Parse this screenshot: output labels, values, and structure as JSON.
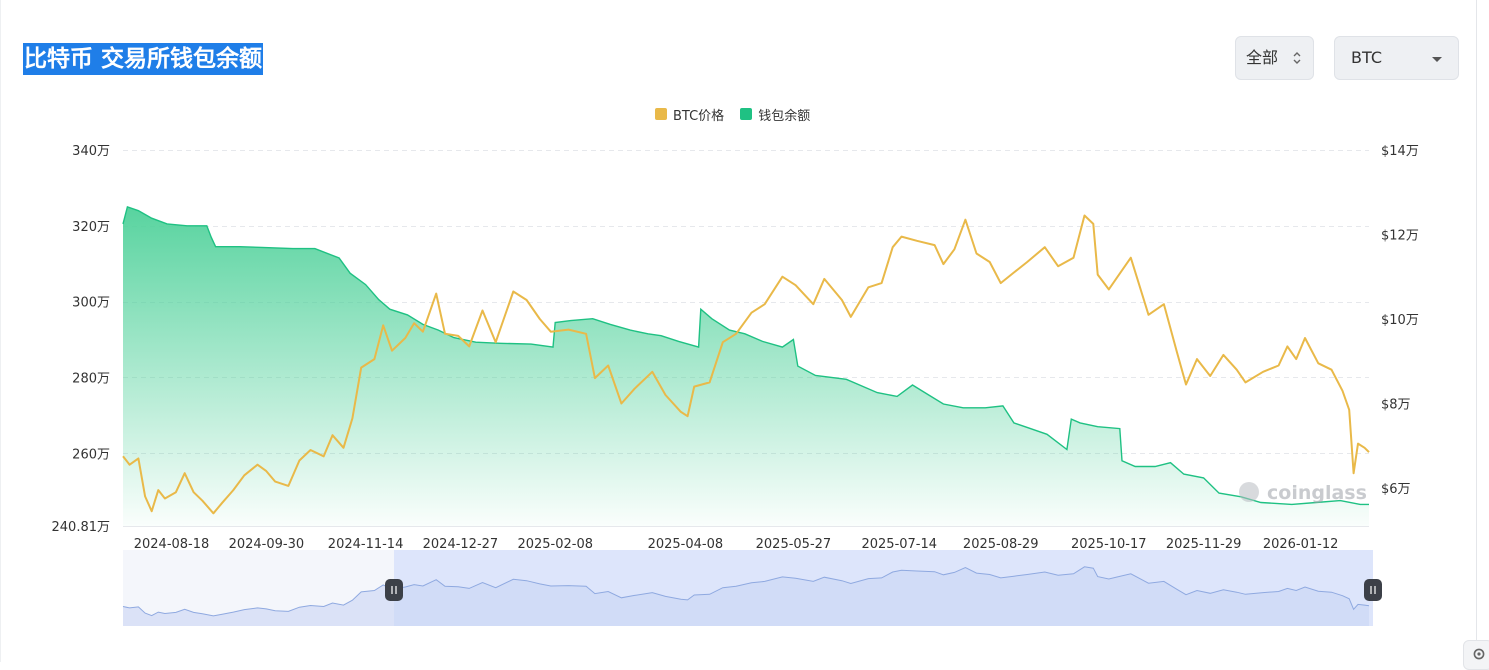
{
  "header": {
    "title": "比特币 交易所钱包余额",
    "range_select": {
      "value": "全部"
    },
    "coin_select": {
      "value": "BTC"
    }
  },
  "watermark": "coinglass",
  "colors": {
    "price": "#e9b949",
    "balance": "#1fc183",
    "balance_fill_top": "#4fd19a",
    "grid": "#e6e8ec",
    "navigator_line": "#8fa9e0",
    "navigator_fill": "#dde5fb",
    "title_bg": "#1f7ee8"
  },
  "chart_data": {
    "type": "line",
    "legend": [
      "BTC价格",
      "钱包余额"
    ],
    "left_axis": {
      "ticks": [
        "340万",
        "320万",
        "300万",
        "280万",
        "260万",
        "240.81万"
      ],
      "values": [
        3400000,
        3200000,
        3000000,
        2800000,
        2600000,
        2408100
      ],
      "range": [
        2408100,
        3400000
      ]
    },
    "right_axis": {
      "ticks": [
        "$14万",
        "$12万",
        "$10万",
        "$8万",
        "$6万"
      ],
      "values": [
        140000,
        120000,
        100000,
        80000,
        60000
      ],
      "range": [
        51000,
        140000
      ]
    },
    "x_ticks": [
      "2024-08-18",
      "2024-09-30",
      "2024-11-14",
      "2024-12-27",
      "2025-02-08",
      "2025-04-08",
      "2025-05-27",
      "2025-07-14",
      "2025-08-29",
      "2025-10-17",
      "2025-11-29",
      "2026-01-12"
    ],
    "x_range": [
      "2024-07-27",
      "2026-02-12"
    ],
    "series": [
      {
        "name": "钱包余额",
        "axis": "left",
        "points": [
          [
            "2024-07-27",
            3205000
          ],
          [
            "2024-07-29",
            3250000
          ],
          [
            "2024-08-03",
            3240000
          ],
          [
            "2024-08-09",
            3220000
          ],
          [
            "2024-08-16",
            3205000
          ],
          [
            "2024-08-25",
            3200000
          ],
          [
            "2024-09-03",
            3200000
          ],
          [
            "2024-09-05",
            3170000
          ],
          [
            "2024-09-07",
            3145000
          ],
          [
            "2024-09-18",
            3145000
          ],
          [
            "2024-09-28",
            3143000
          ],
          [
            "2024-10-12",
            3140000
          ],
          [
            "2024-10-22",
            3140000
          ],
          [
            "2024-11-02",
            3115000
          ],
          [
            "2024-11-07",
            3075000
          ],
          [
            "2024-11-14",
            3045000
          ],
          [
            "2024-11-20",
            3005000
          ],
          [
            "2024-11-25",
            2980000
          ],
          [
            "2024-12-03",
            2965000
          ],
          [
            "2024-12-10",
            2940000
          ],
          [
            "2024-12-17",
            2925000
          ],
          [
            "2024-12-24",
            2905000
          ],
          [
            "2025-01-03",
            2893000
          ],
          [
            "2025-01-14",
            2890000
          ],
          [
            "2025-01-28",
            2888000
          ],
          [
            "2025-02-07",
            2880000
          ],
          [
            "2025-02-08",
            2945000
          ],
          [
            "2025-02-15",
            2950000
          ],
          [
            "2025-02-25",
            2955000
          ],
          [
            "2025-03-05",
            2940000
          ],
          [
            "2025-03-14",
            2925000
          ],
          [
            "2025-03-22",
            2915000
          ],
          [
            "2025-03-28",
            2910000
          ],
          [
            "2025-04-05",
            2895000
          ],
          [
            "2025-04-14",
            2880000
          ],
          [
            "2025-04-15",
            2980000
          ],
          [
            "2025-04-20",
            2955000
          ],
          [
            "2025-04-28",
            2925000
          ],
          [
            "2025-05-05",
            2915000
          ],
          [
            "2025-05-13",
            2895000
          ],
          [
            "2025-05-22",
            2880000
          ],
          [
            "2025-05-27",
            2900000
          ],
          [
            "2025-05-29",
            2830000
          ],
          [
            "2025-06-06",
            2805000
          ],
          [
            "2025-06-20",
            2795000
          ],
          [
            "2025-07-04",
            2760000
          ],
          [
            "2025-07-13",
            2750000
          ],
          [
            "2025-07-20",
            2780000
          ],
          [
            "2025-07-27",
            2755000
          ],
          [
            "2025-08-03",
            2730000
          ],
          [
            "2025-08-12",
            2720000
          ],
          [
            "2025-08-22",
            2720000
          ],
          [
            "2025-08-30",
            2725000
          ],
          [
            "2025-09-04",
            2680000
          ],
          [
            "2025-09-09",
            2670000
          ],
          [
            "2025-09-19",
            2650000
          ],
          [
            "2025-09-28",
            2610000
          ],
          [
            "2025-09-30",
            2690000
          ],
          [
            "2025-10-04",
            2680000
          ],
          [
            "2025-10-12",
            2670000
          ],
          [
            "2025-10-22",
            2665000
          ],
          [
            "2025-10-23",
            2580000
          ],
          [
            "2025-10-29",
            2565000
          ],
          [
            "2025-11-07",
            2565000
          ],
          [
            "2025-11-14",
            2575000
          ],
          [
            "2025-11-20",
            2545000
          ],
          [
            "2025-11-29",
            2535000
          ],
          [
            "2025-12-06",
            2495000
          ],
          [
            "2025-12-16",
            2485000
          ],
          [
            "2025-12-25",
            2470000
          ],
          [
            "2026-01-08",
            2465000
          ],
          [
            "2026-01-19",
            2470000
          ],
          [
            "2026-01-30",
            2475000
          ],
          [
            "2026-02-08",
            2465000
          ],
          [
            "2026-02-12",
            2465000
          ]
        ]
      },
      {
        "name": "BTC价格",
        "axis": "right",
        "points": [
          [
            "2024-07-27",
            67500
          ],
          [
            "2024-07-30",
            65500
          ],
          [
            "2024-08-03",
            67000
          ],
          [
            "2024-08-06",
            58000
          ],
          [
            "2024-08-09",
            54500
          ],
          [
            "2024-08-12",
            59500
          ],
          [
            "2024-08-15",
            57500
          ],
          [
            "2024-08-20",
            59000
          ],
          [
            "2024-08-24",
            63500
          ],
          [
            "2024-08-28",
            59000
          ],
          [
            "2024-09-01",
            57000
          ],
          [
            "2024-09-06",
            54000
          ],
          [
            "2024-09-10",
            56500
          ],
          [
            "2024-09-15",
            59500
          ],
          [
            "2024-09-20",
            63000
          ],
          [
            "2024-09-26",
            65500
          ],
          [
            "2024-09-30",
            64000
          ],
          [
            "2024-10-04",
            61500
          ],
          [
            "2024-10-10",
            60500
          ],
          [
            "2024-10-15",
            66500
          ],
          [
            "2024-10-20",
            69000
          ],
          [
            "2024-10-26",
            67500
          ],
          [
            "2024-10-30",
            72500
          ],
          [
            "2024-11-04",
            69500
          ],
          [
            "2024-11-08",
            76500
          ],
          [
            "2024-11-12",
            88500
          ],
          [
            "2024-11-18",
            90500
          ],
          [
            "2024-11-22",
            98500
          ],
          [
            "2024-11-26",
            92500
          ],
          [
            "2024-12-02",
            95500
          ],
          [
            "2024-12-06",
            99000
          ],
          [
            "2024-12-10",
            97000
          ],
          [
            "2024-12-16",
            106000
          ],
          [
            "2024-12-20",
            96500
          ],
          [
            "2024-12-26",
            96000
          ],
          [
            "2024-12-31",
            93500
          ],
          [
            "2025-01-06",
            102000
          ],
          [
            "2025-01-12",
            94500
          ],
          [
            "2025-01-20",
            106500
          ],
          [
            "2025-01-26",
            104500
          ],
          [
            "2025-02-01",
            100000
          ],
          [
            "2025-02-06",
            97000
          ],
          [
            "2025-02-14",
            97500
          ],
          [
            "2025-02-22",
            96500
          ],
          [
            "2025-02-26",
            86000
          ],
          [
            "2025-03-04",
            89000
          ],
          [
            "2025-03-10",
            80000
          ],
          [
            "2025-03-16",
            83500
          ],
          [
            "2025-03-24",
            87500
          ],
          [
            "2025-03-30",
            82000
          ],
          [
            "2025-04-06",
            78000
          ],
          [
            "2025-04-09",
            77000
          ],
          [
            "2025-04-12",
            84000
          ],
          [
            "2025-04-19",
            85000
          ],
          [
            "2025-04-25",
            94500
          ],
          [
            "2025-05-01",
            96500
          ],
          [
            "2025-05-08",
            101500
          ],
          [
            "2025-05-14",
            103500
          ],
          [
            "2025-05-22",
            110000
          ],
          [
            "2025-05-28",
            108000
          ],
          [
            "2025-06-05",
            103500
          ],
          [
            "2025-06-10",
            109500
          ],
          [
            "2025-06-18",
            104500
          ],
          [
            "2025-06-22",
            100500
          ],
          [
            "2025-06-30",
            107500
          ],
          [
            "2025-07-06",
            108500
          ],
          [
            "2025-07-11",
            117000
          ],
          [
            "2025-07-15",
            119500
          ],
          [
            "2025-07-22",
            118500
          ],
          [
            "2025-07-30",
            117500
          ],
          [
            "2025-08-03",
            113000
          ],
          [
            "2025-08-08",
            116500
          ],
          [
            "2025-08-13",
            123500
          ],
          [
            "2025-08-18",
            115500
          ],
          [
            "2025-08-24",
            113500
          ],
          [
            "2025-08-29",
            108500
          ],
          [
            "2025-09-04",
            111000
          ],
          [
            "2025-09-10",
            113500
          ],
          [
            "2025-09-18",
            117000
          ],
          [
            "2025-09-24",
            112500
          ],
          [
            "2025-10-01",
            114500
          ],
          [
            "2025-10-06",
            124500
          ],
          [
            "2025-10-10",
            122500
          ],
          [
            "2025-10-12",
            110500
          ],
          [
            "2025-10-17",
            107000
          ],
          [
            "2025-10-21",
            110000
          ],
          [
            "2025-10-27",
            114500
          ],
          [
            "2025-11-04",
            101000
          ],
          [
            "2025-11-11",
            103500
          ],
          [
            "2025-11-17",
            92000
          ],
          [
            "2025-11-21",
            84500
          ],
          [
            "2025-11-26",
            90500
          ],
          [
            "2025-12-02",
            86500
          ],
          [
            "2025-12-08",
            91500
          ],
          [
            "2025-12-14",
            88000
          ],
          [
            "2025-12-18",
            85000
          ],
          [
            "2025-12-26",
            87500
          ],
          [
            "2026-01-02",
            89000
          ],
          [
            "2026-01-06",
            93500
          ],
          [
            "2026-01-10",
            90500
          ],
          [
            "2026-01-14",
            95500
          ],
          [
            "2026-01-20",
            89500
          ],
          [
            "2026-01-26",
            88000
          ],
          [
            "2026-01-31",
            83000
          ],
          [
            "2026-02-03",
            78500
          ],
          [
            "2026-02-05",
            63500
          ],
          [
            "2026-02-07",
            70500
          ],
          [
            "2026-02-10",
            69500
          ],
          [
            "2026-02-12",
            68500
          ]
        ]
      }
    ],
    "grid": true,
    "legend_position": "top-center"
  }
}
